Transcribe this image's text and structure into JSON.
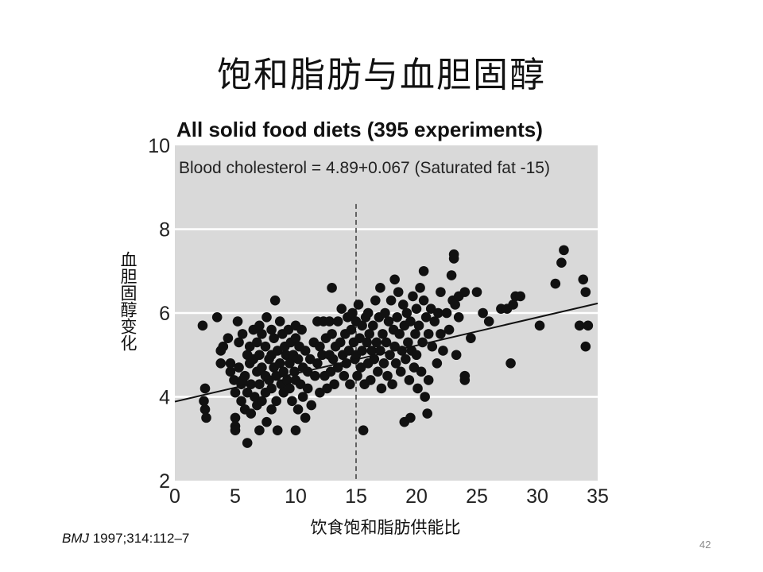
{
  "slide": {
    "title": "饱和脂肪与血胆固醇",
    "citation_journal": "BMJ",
    "citation_rest": " 1997;314:112–7",
    "page_number": "42"
  },
  "chart_data": {
    "type": "scatter",
    "title": "All solid food diets (395 experiments)",
    "equation": "Blood cholesterol = 4.89+0.067 (Saturated fat -15)",
    "xlabel": "饮食饱和脂肪供能比",
    "ylabel": "血胆固醇变化",
    "xlim": [
      0,
      35
    ],
    "ylim": [
      2,
      10
    ],
    "x_ticks": [
      0,
      5,
      10,
      15,
      20,
      25,
      30,
      35
    ],
    "y_ticks": [
      2,
      4,
      6,
      8,
      10
    ],
    "grid": "horizontal",
    "reference_line_x": 15,
    "regression": {
      "intercept_at_15": 4.89,
      "slope": 0.067,
      "x_center": 15
    },
    "colors": {
      "panel": "#d9d9d9",
      "point": "#111111",
      "grid": "#ffffff"
    },
    "points": [
      [
        2.3,
        5.7
      ],
      [
        2.5,
        4.2
      ],
      [
        2.5,
        3.7
      ],
      [
        2.6,
        3.5
      ],
      [
        2.4,
        3.9
      ],
      [
        3.5,
        5.9
      ],
      [
        3.8,
        5.1
      ],
      [
        3.8,
        4.8
      ],
      [
        4.0,
        5.2
      ],
      [
        4.4,
        5.4
      ],
      [
        4.6,
        4.6
      ],
      [
        4.6,
        4.8
      ],
      [
        4.9,
        4.4
      ],
      [
        5.0,
        4.1
      ],
      [
        5.0,
        3.5
      ],
      [
        5.0,
        3.3
      ],
      [
        5.0,
        3.2
      ],
      [
        5.2,
        5.8
      ],
      [
        5.3,
        5.3
      ],
      [
        5.3,
        4.7
      ],
      [
        5.5,
        4.3
      ],
      [
        5.5,
        3.9
      ],
      [
        5.6,
        5.5
      ],
      [
        5.6,
        4.4
      ],
      [
        5.8,
        4.5
      ],
      [
        5.8,
        3.7
      ],
      [
        6.0,
        5.0
      ],
      [
        6.0,
        4.1
      ],
      [
        6.0,
        2.9
      ],
      [
        6.2,
        5.2
      ],
      [
        6.2,
        4.8
      ],
      [
        6.3,
        4.3
      ],
      [
        6.3,
        3.6
      ],
      [
        6.5,
        5.6
      ],
      [
        6.5,
        4.9
      ],
      [
        6.6,
        4.0
      ],
      [
        6.8,
        5.3
      ],
      [
        6.8,
        4.6
      ],
      [
        6.8,
        3.8
      ],
      [
        7.0,
        5.7
      ],
      [
        7.0,
        5.0
      ],
      [
        7.0,
        4.3
      ],
      [
        7.0,
        3.2
      ],
      [
        7.2,
        5.5
      ],
      [
        7.2,
        4.7
      ],
      [
        7.2,
        3.9
      ],
      [
        7.5,
        5.2
      ],
      [
        7.5,
        4.5
      ],
      [
        7.5,
        4.1
      ],
      [
        7.6,
        3.4
      ],
      [
        7.6,
        5.9
      ],
      [
        7.8,
        4.9
      ],
      [
        7.8,
        4.4
      ],
      [
        8.0,
        5.6
      ],
      [
        8.0,
        5.0
      ],
      [
        8.0,
        4.2
      ],
      [
        8.0,
        3.7
      ],
      [
        8.2,
        5.4
      ],
      [
        8.2,
        4.7
      ],
      [
        8.3,
        6.3
      ],
      [
        8.4,
        4.5
      ],
      [
        8.4,
        3.9
      ],
      [
        8.5,
        5.1
      ],
      [
        8.5,
        3.2
      ],
      [
        8.7,
        5.8
      ],
      [
        8.7,
        4.8
      ],
      [
        8.8,
        4.3
      ],
      [
        8.9,
        5.5
      ],
      [
        9.0,
        4.6
      ],
      [
        9.0,
        4.1
      ],
      [
        9.1,
        5.2
      ],
      [
        9.2,
        5.0
      ],
      [
        9.3,
        4.4
      ],
      [
        9.4,
        5.6
      ],
      [
        9.5,
        4.8
      ],
      [
        9.5,
        4.2
      ],
      [
        9.6,
        5.3
      ],
      [
        9.7,
        3.9
      ],
      [
        9.8,
        5.0
      ],
      [
        9.9,
        4.6
      ],
      [
        10.0,
        5.7
      ],
      [
        10.0,
        5.4
      ],
      [
        10.0,
        4.4
      ],
      [
        10.0,
        3.2
      ],
      [
        10.2,
        4.9
      ],
      [
        10.2,
        3.7
      ],
      [
        10.3,
        5.2
      ],
      [
        10.4,
        4.3
      ],
      [
        10.5,
        5.6
      ],
      [
        10.6,
        4.7
      ],
      [
        10.6,
        4.0
      ],
      [
        10.8,
        5.1
      ],
      [
        10.8,
        3.5
      ],
      [
        11.0,
        4.6
      ],
      [
        11.0,
        4.2
      ],
      [
        11.2,
        4.9
      ],
      [
        11.3,
        3.8
      ],
      [
        11.5,
        5.3
      ],
      [
        11.6,
        4.5
      ],
      [
        11.8,
        5.8
      ],
      [
        11.8,
        4.8
      ],
      [
        12.0,
        5.2
      ],
      [
        12.0,
        4.1
      ],
      [
        12.2,
        5.0
      ],
      [
        12.3,
        5.8
      ],
      [
        12.4,
        4.5
      ],
      [
        12.5,
        5.4
      ],
      [
        12.6,
        4.2
      ],
      [
        12.8,
        5.8
      ],
      [
        12.8,
        5.0
      ],
      [
        12.9,
        4.6
      ],
      [
        13.0,
        6.6
      ],
      [
        13.0,
        5.5
      ],
      [
        13.1,
        4.9
      ],
      [
        13.2,
        4.3
      ],
      [
        13.3,
        5.2
      ],
      [
        13.5,
        5.8
      ],
      [
        13.5,
        4.7
      ],
      [
        13.7,
        5.3
      ],
      [
        13.8,
        6.1
      ],
      [
        13.9,
        5.0
      ],
      [
        14.0,
        4.5
      ],
      [
        14.1,
        5.5
      ],
      [
        14.2,
        4.8
      ],
      [
        14.3,
        5.9
      ],
      [
        14.4,
        5.1
      ],
      [
        14.5,
        4.3
      ],
      [
        14.6,
        5.6
      ],
      [
        14.7,
        6.0
      ],
      [
        14.8,
        5.3
      ],
      [
        14.9,
        4.9
      ],
      [
        15.0,
        5.8
      ],
      [
        15.0,
        5.0
      ],
      [
        15.1,
        4.5
      ],
      [
        15.2,
        6.2
      ],
      [
        15.3,
        5.4
      ],
      [
        15.4,
        4.7
      ],
      [
        15.5,
        5.7
      ],
      [
        15.5,
        5.1
      ],
      [
        15.6,
        3.2
      ],
      [
        15.7,
        4.3
      ],
      [
        15.8,
        5.9
      ],
      [
        15.9,
        5.3
      ],
      [
        16.0,
        4.8
      ],
      [
        16.0,
        6.0
      ],
      [
        16.1,
        5.5
      ],
      [
        16.2,
        4.4
      ],
      [
        16.3,
        5.1
      ],
      [
        16.4,
        5.7
      ],
      [
        16.5,
        4.9
      ],
      [
        16.6,
        6.3
      ],
      [
        16.7,
        5.3
      ],
      [
        16.8,
        4.6
      ],
      [
        16.9,
        5.9
      ],
      [
        17.0,
        5.1
      ],
      [
        17.0,
        6.6
      ],
      [
        17.1,
        4.2
      ],
      [
        17.2,
        5.5
      ],
      [
        17.3,
        4.8
      ],
      [
        17.4,
        6.0
      ],
      [
        17.5,
        5.3
      ],
      [
        17.6,
        4.5
      ],
      [
        17.7,
        5.8
      ],
      [
        17.8,
        5.0
      ],
      [
        17.9,
        6.3
      ],
      [
        18.0,
        4.3
      ],
      [
        18.1,
        5.6
      ],
      [
        18.2,
        6.8
      ],
      [
        18.2,
        5.2
      ],
      [
        18.3,
        4.8
      ],
      [
        18.4,
        5.9
      ],
      [
        18.5,
        6.5
      ],
      [
        18.6,
        5.5
      ],
      [
        18.7,
        4.6
      ],
      [
        18.8,
        5.1
      ],
      [
        18.9,
        6.2
      ],
      [
        19.0,
        3.4
      ],
      [
        19.0,
        5.7
      ],
      [
        19.1,
        4.9
      ],
      [
        19.2,
        6.0
      ],
      [
        19.3,
        5.3
      ],
      [
        19.4,
        4.4
      ],
      [
        19.5,
        3.5
      ],
      [
        19.5,
        5.8
      ],
      [
        19.6,
        5.1
      ],
      [
        19.7,
        6.4
      ],
      [
        19.8,
        4.7
      ],
      [
        19.9,
        5.5
      ],
      [
        20.0,
        6.1
      ],
      [
        20.0,
        5.0
      ],
      [
        20.1,
        4.2
      ],
      [
        20.2,
        5.7
      ],
      [
        20.3,
        6.6
      ],
      [
        20.4,
        4.6
      ],
      [
        20.5,
        5.3
      ],
      [
        20.6,
        6.3
      ],
      [
        20.6,
        7.0
      ],
      [
        20.7,
        4.0
      ],
      [
        20.8,
        5.9
      ],
      [
        20.9,
        3.6
      ],
      [
        21.0,
        5.5
      ],
      [
        21.0,
        4.4
      ],
      [
        21.2,
        6.1
      ],
      [
        21.3,
        5.2
      ],
      [
        21.5,
        5.8
      ],
      [
        21.7,
        4.8
      ],
      [
        21.8,
        6.0
      ],
      [
        22.0,
        6.5
      ],
      [
        22.0,
        5.5
      ],
      [
        22.2,
        5.1
      ],
      [
        22.5,
        6.0
      ],
      [
        22.7,
        5.6
      ],
      [
        22.9,
        6.9
      ],
      [
        23.0,
        6.3
      ],
      [
        23.1,
        7.3
      ],
      [
        23.1,
        7.4
      ],
      [
        23.2,
        6.2
      ],
      [
        23.3,
        5.0
      ],
      [
        23.5,
        6.4
      ],
      [
        23.5,
        5.9
      ],
      [
        24.0,
        6.5
      ],
      [
        24.0,
        4.4
      ],
      [
        24.0,
        4.5
      ],
      [
        24.5,
        5.4
      ],
      [
        25.0,
        6.5
      ],
      [
        25.5,
        6.0
      ],
      [
        26.0,
        5.8
      ],
      [
        27.0,
        6.1
      ],
      [
        27.5,
        6.1
      ],
      [
        27.8,
        4.8
      ],
      [
        28.0,
        6.2
      ],
      [
        28.2,
        6.4
      ],
      [
        28.6,
        6.4
      ],
      [
        30.2,
        5.7
      ],
      [
        31.5,
        6.7
      ],
      [
        32.0,
        7.2
      ],
      [
        32.2,
        7.5
      ],
      [
        33.5,
        5.7
      ],
      [
        33.8,
        6.8
      ],
      [
        34.0,
        6.5
      ],
      [
        34.0,
        5.2
      ],
      [
        34.2,
        5.7
      ]
    ]
  }
}
